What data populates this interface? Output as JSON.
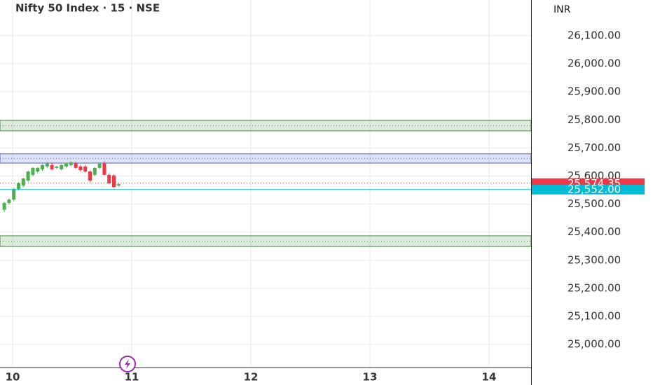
{
  "chart_data": {
    "type": "candlestick",
    "title": "Nifty 50 Index · 15 · NSE",
    "currency": "INR",
    "x": [
      9.93,
      9.97,
      10.01,
      10.05,
      10.09,
      10.13,
      10.17,
      10.21,
      10.25,
      10.29,
      10.33,
      10.37,
      10.41,
      10.45,
      10.49,
      10.53,
      10.57,
      10.61,
      10.65,
      10.69,
      10.73,
      10.77,
      10.81,
      10.85,
      10.89
    ],
    "open": [
      25480,
      25504,
      25516,
      25554,
      25566,
      25584,
      25604,
      25616,
      25624,
      25634,
      25639,
      25629,
      25624,
      25634,
      25639,
      25646,
      25634,
      25634,
      25616,
      25604,
      25629,
      25646,
      25604,
      25602,
      25566
    ],
    "high": [
      25508,
      25520,
      25558,
      25578,
      25594,
      25620,
      25632,
      25632,
      25642,
      25650,
      25648,
      25636,
      25642,
      25648,
      25652,
      25650,
      25640,
      25638,
      25620,
      25632,
      25648,
      25652,
      25610,
      25606,
      25576
    ],
    "low": [
      25472,
      25498,
      25510,
      25548,
      25560,
      25578,
      25598,
      25610,
      25618,
      25628,
      25620,
      25625,
      25620,
      25630,
      25635,
      25626,
      25616,
      25612,
      25578,
      25600,
      25625,
      25602,
      25572,
      25558,
      25562
    ],
    "close": [
      25504,
      25516,
      25554,
      25574,
      25591,
      25616,
      25629,
      25629,
      25639,
      25646,
      25624,
      25634,
      25639,
      25644,
      25649,
      25629,
      25621,
      25616,
      25584,
      25629,
      25644,
      25604,
      25574,
      25561,
      25571
    ],
    "up_color": "#4caf50",
    "down_color": "#f23645",
    "xlim": [
      9.894,
      14.353
    ],
    "xticks": [
      10,
      11,
      12,
      13,
      14
    ],
    "ylim": [
      24918,
      26227
    ],
    "yticks": [
      {
        "value": 25000,
        "label": "25,000.00"
      },
      {
        "value": 25100,
        "label": "25,100.00"
      },
      {
        "value": 25200,
        "label": "25,200.00"
      },
      {
        "value": 25300,
        "label": "25,300.00"
      },
      {
        "value": 25400,
        "label": "25,400.00"
      },
      {
        "value": 25500,
        "label": "25,500.00"
      },
      {
        "value": 25600,
        "label": "25,600.00"
      },
      {
        "value": 25700,
        "label": "25,700.00"
      },
      {
        "value": 25800,
        "label": "25,800.00"
      },
      {
        "value": 25900,
        "label": "25,900.00"
      },
      {
        "value": 26000,
        "label": "26,000.00"
      },
      {
        "value": 26100,
        "label": "26,100.00"
      }
    ],
    "grid": true,
    "zones": [
      {
        "low": 25761,
        "high": 25798,
        "color": "#4c8c4a"
      },
      {
        "low": 25646,
        "high": 25679,
        "color": "#5060c0"
      },
      {
        "low": 25349,
        "high": 25387,
        "color": "#4c8c4a"
      }
    ],
    "price_labels": [
      {
        "value": 25574.35,
        "label": "25,574.35",
        "color": "#f23645"
      },
      {
        "value": 25552,
        "label": "25,552.00",
        "color": "#00bcd4"
      }
    ]
  }
}
